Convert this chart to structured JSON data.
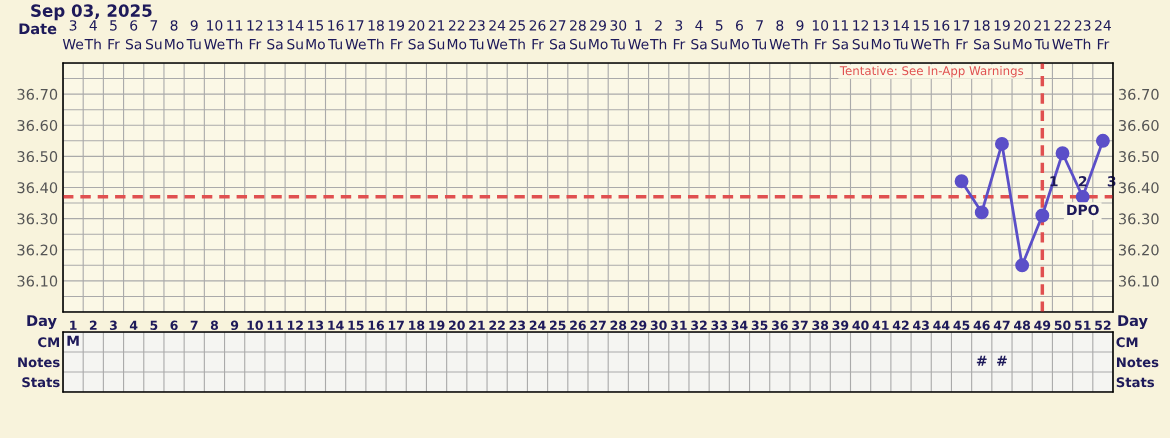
{
  "chart_data": [
    {
      "type": "line",
      "title": "Sep 03, 2025",
      "xlabel": "Day",
      "x2label": "Date",
      "categories": [
        "1",
        "2",
        "3",
        "4",
        "5",
        "6",
        "7",
        "8",
        "9",
        "10",
        "11",
        "12",
        "13",
        "14",
        "15",
        "16",
        "17",
        "18",
        "19",
        "20",
        "21",
        "22",
        "23",
        "24",
        "25",
        "26",
        "27",
        "28",
        "29",
        "30",
        "31",
        "32",
        "33",
        "34",
        "35",
        "36",
        "37",
        "38",
        "39",
        "40",
        "41",
        "42",
        "43",
        "44",
        "45",
        "46",
        "47",
        "48",
        "49",
        "50",
        "51",
        "52"
      ],
      "series": [
        {
          "color": "#5b4fc8",
          "values": [
            null,
            null,
            null,
            null,
            null,
            null,
            null,
            null,
            null,
            null,
            null,
            null,
            null,
            null,
            null,
            null,
            null,
            null,
            null,
            null,
            null,
            null,
            null,
            null,
            null,
            null,
            null,
            null,
            null,
            null,
            null,
            null,
            null,
            null,
            null,
            null,
            null,
            null,
            null,
            null,
            null,
            null,
            null,
            null,
            36.42,
            36.32,
            36.54,
            36.15,
            36.31,
            36.51,
            36.37,
            36.55
          ]
        }
      ],
      "marker": "circle",
      "line_style": "solid",
      "grid": true,
      "ylim": [
        36.0,
        36.8
      ],
      "yticks": [
        {
          "value": 36.1,
          "label": "36.10"
        },
        {
          "value": 36.2,
          "label": "36.20"
        },
        {
          "value": 36.3,
          "label": "36.30"
        },
        {
          "value": 36.4,
          "label": "36.40"
        },
        {
          "value": 36.5,
          "label": "36.50"
        },
        {
          "value": 36.6,
          "label": "36.60"
        },
        {
          "value": 36.7,
          "label": "36.70"
        }
      ],
      "y2lim": [
        36.0,
        36.8
      ],
      "y2ticks": [
        {
          "value": 36.1,
          "label": "36.10"
        },
        {
          "value": 36.2,
          "label": "36.20"
        },
        {
          "value": 36.3,
          "label": "36.30"
        },
        {
          "value": 36.4,
          "label": "36.40"
        },
        {
          "value": 36.5,
          "label": "36.50"
        },
        {
          "value": 36.6,
          "label": "36.60"
        },
        {
          "value": 36.7,
          "label": "36.70"
        }
      ],
      "ref_lines": [
        {
          "axis": "y",
          "value": 36.37,
          "color": "#e05050",
          "line_style": "dashed"
        },
        {
          "axis": "x",
          "value": "49",
          "color": "#e05050",
          "line_style": "dashed"
        }
      ],
      "annotations": [
        "3\nWe",
        "4\nTh",
        "5\nFr",
        "6\nSa",
        "7\nSu",
        "8\nMo",
        "9\nTu",
        "10\nWe",
        "11\nTh",
        "12\nFr",
        "13\nSa",
        "14\nSu",
        "15\nMo",
        "16\nTu",
        "17\nWe",
        "18\nTh",
        "19\nFr",
        "20\nSa",
        "21\nSu",
        "22\nMo",
        "23\nTu",
        "24\nWe",
        "25\nTh",
        "26\nFr",
        "27\nSa",
        "28\nSu",
        "29\nMo",
        "30\nTu",
        "1\nWe",
        "2\nTh",
        "3\nFr",
        "4\nSa",
        "5\nSu",
        "6\nMo",
        "7\nTu",
        "8\nWe",
        "9\nTh",
        "10\nFr",
        "11\nSa",
        "12\nSu",
        "13\nMo",
        "14\nTu",
        "15\nWe",
        "16\nTh",
        "17\nFr",
        "18\nSa",
        "19\nSu",
        "20\nMo",
        "21\nTu",
        "22\nWe",
        "23\nTh",
        "24\nFr",
        "1    2    3",
        "DPO",
        "Tentative: See In-App Warnings"
      ]
    },
    {
      "type": "heatmap",
      "categories": [
        null,
        null,
        null,
        null,
        null,
        null,
        null,
        null,
        null,
        null,
        null,
        null,
        null,
        null,
        null,
        null,
        null,
        null,
        null,
        null,
        null,
        null,
        null,
        null,
        null,
        null,
        null,
        null,
        null,
        null,
        null,
        null,
        null,
        null,
        null,
        null,
        null,
        null,
        null,
        null,
        null,
        null,
        null,
        null,
        null,
        null,
        null,
        null,
        null,
        null,
        null,
        null
      ],
      "y_categories": [
        "CM",
        "Notes",
        "Stats"
      ],
      "y2_categories": [
        "CM",
        "Notes",
        "Stats"
      ],
      "cells": [
        [
          null,
          null,
          null,
          null,
          null,
          null,
          null,
          null,
          null,
          null,
          null,
          null,
          null,
          null,
          null,
          null,
          null,
          null,
          null,
          null,
          null,
          null,
          null,
          null,
          null,
          null,
          null,
          null,
          null,
          null,
          null,
          null,
          null,
          null,
          null,
          null,
          null,
          null,
          null,
          null,
          null,
          null,
          null,
          null,
          null,
          null,
          null,
          null,
          null,
          null,
          null,
          null
        ],
        [
          null,
          null,
          null,
          null,
          null,
          null,
          null,
          null,
          null,
          null,
          null,
          null,
          null,
          null,
          null,
          null,
          null,
          null,
          null,
          null,
          null,
          null,
          null,
          null,
          null,
          null,
          null,
          null,
          null,
          null,
          null,
          null,
          null,
          null,
          null,
          null,
          null,
          null,
          null,
          null,
          null,
          null,
          null,
          null,
          null,
          null,
          null,
          null,
          null,
          null,
          null,
          null
        ],
        [
          null,
          null,
          null,
          null,
          null,
          null,
          null,
          null,
          null,
          null,
          null,
          null,
          null,
          null,
          null,
          null,
          null,
          null,
          null,
          null,
          null,
          null,
          null,
          null,
          null,
          null,
          null,
          null,
          null,
          null,
          null,
          null,
          null,
          null,
          null,
          null,
          null,
          null,
          null,
          null,
          null,
          null,
          null,
          null,
          null,
          null,
          null,
          null,
          null,
          null,
          null,
          null
        ]
      ],
      "cell_labels": [
        [
          "M",
          null,
          null,
          null,
          null,
          null,
          null,
          null,
          null,
          null,
          null,
          null,
          null,
          null,
          null,
          null,
          null,
          null,
          null,
          null,
          null,
          null,
          null,
          null,
          null,
          null,
          null,
          null,
          null,
          null,
          null,
          null,
          null,
          null,
          null,
          null,
          null,
          null,
          null,
          null,
          null,
          null,
          null,
          null,
          null,
          null,
          null,
          null,
          null,
          null,
          null,
          null
        ],
        [
          null,
          null,
          null,
          null,
          null,
          null,
          null,
          null,
          null,
          null,
          null,
          null,
          null,
          null,
          null,
          null,
          null,
          null,
          null,
          null,
          null,
          null,
          null,
          null,
          null,
          null,
          null,
          null,
          null,
          null,
          null,
          null,
          null,
          null,
          null,
          null,
          null,
          null,
          null,
          null,
          null,
          null,
          null,
          null,
          null,
          "#",
          "#",
          null,
          null,
          null,
          null,
          null
        ],
        [
          null,
          null,
          null,
          null,
          null,
          null,
          null,
          null,
          null,
          null,
          null,
          null,
          null,
          null,
          null,
          null,
          null,
          null,
          null,
          null,
          null,
          null,
          null,
          null,
          null,
          null,
          null,
          null,
          null,
          null,
          null,
          null,
          null,
          null,
          null,
          null,
          null,
          null,
          null,
          null,
          null,
          null,
          null,
          null,
          null,
          null,
          null,
          null,
          null,
          null,
          null,
          null
        ]
      ]
    }
  ]
}
